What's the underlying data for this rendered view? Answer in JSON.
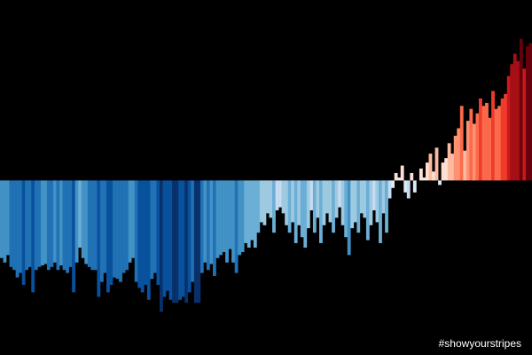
{
  "chart_data": {
    "type": "bar",
    "annotation": "#showyourstripes",
    "ylim": [
      -1.17,
      1.21
    ],
    "colors": [
      "#08306b",
      "#08519c",
      "#2171b5",
      "#4292c6",
      "#6baed6",
      "#9ecae1",
      "#c6dbef",
      "#deebf7",
      "#fee0d2",
      "#fcbba1",
      "#fc9272",
      "#fb6a4a",
      "#ef3b2c",
      "#cb181d",
      "#a50f15",
      "#67000d"
    ],
    "values": [
      -0.52,
      -0.55,
      -0.5,
      -0.58,
      -0.6,
      -0.65,
      -0.62,
      -0.7,
      -0.6,
      -0.58,
      -0.75,
      -0.6,
      -0.58,
      -0.57,
      -0.56,
      -0.6,
      -0.58,
      -0.55,
      -0.6,
      -0.57,
      -0.6,
      -0.62,
      -0.58,
      -0.75,
      -0.55,
      -0.45,
      -0.52,
      -0.56,
      -0.58,
      -0.6,
      -0.6,
      -0.78,
      -0.68,
      -0.62,
      -0.75,
      -0.7,
      -0.65,
      -0.66,
      -0.68,
      -0.62,
      -0.6,
      -0.55,
      -0.52,
      -0.68,
      -0.72,
      -0.75,
      -0.7,
      -0.8,
      -0.66,
      -0.62,
      -0.7,
      -0.88,
      -0.78,
      -0.74,
      -0.8,
      -0.82,
      -0.82,
      -0.8,
      -0.78,
      -0.82,
      -0.75,
      -0.68,
      -0.82,
      -0.82,
      -0.62,
      -0.55,
      -0.6,
      -0.56,
      -0.64,
      -0.52,
      -0.5,
      -0.48,
      -0.55,
      -0.46,
      -0.55,
      -0.62,
      -0.5,
      -0.48,
      -0.42,
      -0.45,
      -0.4,
      -0.45,
      -0.35,
      -0.28,
      -0.3,
      -0.22,
      -0.25,
      -0.35,
      -0.2,
      -0.18,
      -0.22,
      -0.3,
      -0.35,
      -0.28,
      -0.42,
      -0.3,
      -0.38,
      -0.45,
      -0.32,
      -0.2,
      -0.35,
      -0.25,
      -0.42,
      -0.3,
      -0.22,
      -0.28,
      -0.35,
      -0.25,
      -0.18,
      -0.3,
      -0.38,
      -0.5,
      -0.32,
      -0.28,
      -0.35,
      -0.22,
      -0.25,
      -0.4,
      -0.3,
      -0.2,
      -0.28,
      -0.42,
      -0.22,
      -0.35,
      -0.12,
      -0.05,
      0.05,
      0.02,
      0.1,
      -0.08,
      -0.12,
      0.05,
      -0.08,
      0.0,
      0.08,
      0.02,
      0.12,
      0.18,
      0.06,
      0.22,
      -0.03,
      0.12,
      0.15,
      0.25,
      0.18,
      0.3,
      0.35,
      0.5,
      0.2,
      0.4,
      0.48,
      0.38,
      0.45,
      0.55,
      0.5,
      0.52,
      0.42,
      0.6,
      0.48,
      0.5,
      0.55,
      0.58,
      0.7,
      0.78,
      0.85,
      0.8,
      0.95,
      0.75,
      0.9,
      0.92
    ]
  }
}
